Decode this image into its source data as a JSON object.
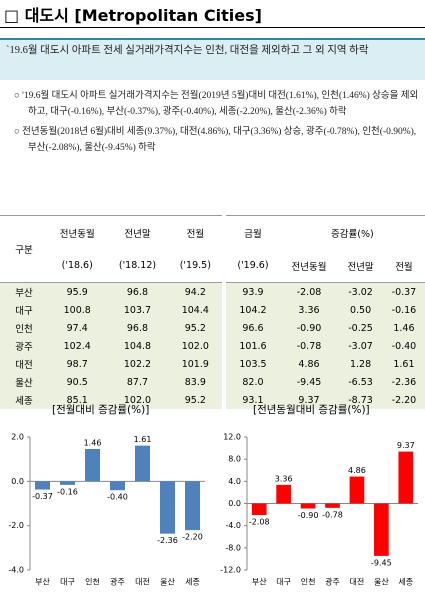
{
  "header": {
    "title": "□ 대도시 [Metropolitan Cities]"
  },
  "summary": "`19.6월 대도시 아파트 전세 실거래가격지수는 인천, 대전을 제외하고 그 외 지역 하락",
  "bullets": [
    "'19.6월 대도시 아파트 실거래가격지수는 전월(2019년 5월)대비 대전(1.61%), 인천(1.46%) 상승을 제외하고, 대구(-0.16%), 부산(-0.37%), 광주(-0.40%), 세종(-2.20%), 울산(-2.36%) 하락",
    "전년동월(2018년 6월)대비 세종(9.37%), 대전(4.86%), 대구(3.36%) 상승, 광주(-0.78%), 인천(-0.90%), 부산(-2.08%), 울산(-9.45%) 하락"
  ],
  "table": {
    "header1": [
      "구분",
      "전년동월",
      "전년말",
      "전월",
      "금월",
      "증감률(%)"
    ],
    "header2": [
      "('18.6)",
      "('18.12)",
      "('19.5)",
      "('19.6)",
      "전년동월",
      "전년말",
      "전월"
    ],
    "rows": [
      [
        "부산",
        "95.9",
        "96.8",
        "94.2",
        "93.9",
        "-2.08",
        "-3.02",
        "-0.37"
      ],
      [
        "대구",
        "100.8",
        "103.7",
        "104.4",
        "104.2",
        "3.36",
        "0.50",
        "-0.16"
      ],
      [
        "인천",
        "97.4",
        "96.8",
        "95.2",
        "96.6",
        "-0.90",
        "-0.25",
        "1.46"
      ],
      [
        "광주",
        "102.4",
        "104.8",
        "102.0",
        "101.6",
        "-0.78",
        "-3.07",
        "-0.40"
      ],
      [
        "대전",
        "98.7",
        "102.2",
        "101.9",
        "103.5",
        "4.86",
        "1.28",
        "1.61"
      ],
      [
        "울산",
        "90.5",
        "87.7",
        "83.9",
        "82.0",
        "-9.45",
        "-6.53",
        "-2.36"
      ],
      [
        "세종",
        "85.1",
        "102.0",
        "95.2",
        "93.1",
        "9.37",
        "-8.73",
        "-2.20"
      ]
    ]
  },
  "chart_data": [
    {
      "type": "bar",
      "title": "[전월대비 증감률(%)]",
      "categories": [
        "부산",
        "대구",
        "인천",
        "광주",
        "대전",
        "울산",
        "세종"
      ],
      "values": [
        -0.37,
        -0.16,
        1.46,
        -0.4,
        1.61,
        -2.36,
        -2.2
      ],
      "value_labels": [
        "-0.37",
        "-0.16",
        "1.46",
        "-0.40",
        "1.61",
        "-2.36",
        "-2.20"
      ],
      "color": "#4f81bd",
      "ylim": [
        -4,
        2
      ],
      "yticks": [
        {
          "value": -4,
          "label": "-4.0"
        },
        {
          "value": -2,
          "label": "-2.0"
        },
        {
          "value": 0,
          "label": "0.0"
        },
        {
          "value": 2,
          "label": "2.0"
        }
      ]
    },
    {
      "type": "bar",
      "title": "[전년동월대비 증감률(%)]",
      "categories": [
        "부산",
        "대구",
        "인천",
        "광주",
        "대전",
        "울산",
        "세종"
      ],
      "values": [
        -2.08,
        3.36,
        -0.9,
        -0.78,
        4.86,
        -9.45,
        9.37
      ],
      "value_labels": [
        "-2.08",
        "3.36",
        "-0.90",
        "-0.78",
        "4.86",
        "-9.45",
        "9.37"
      ],
      "color": "#ff0000",
      "ylim": [
        -12,
        12
      ],
      "yticks": [
        {
          "value": -12,
          "label": "-12.0"
        },
        {
          "value": -8,
          "label": "-8.0"
        },
        {
          "value": -4,
          "label": "-4.0"
        },
        {
          "value": 0,
          "label": "0.0"
        },
        {
          "value": 4,
          "label": "4.0"
        },
        {
          "value": 8,
          "label": "8.0"
        },
        {
          "value": 12,
          "label": "12.0"
        }
      ]
    }
  ]
}
